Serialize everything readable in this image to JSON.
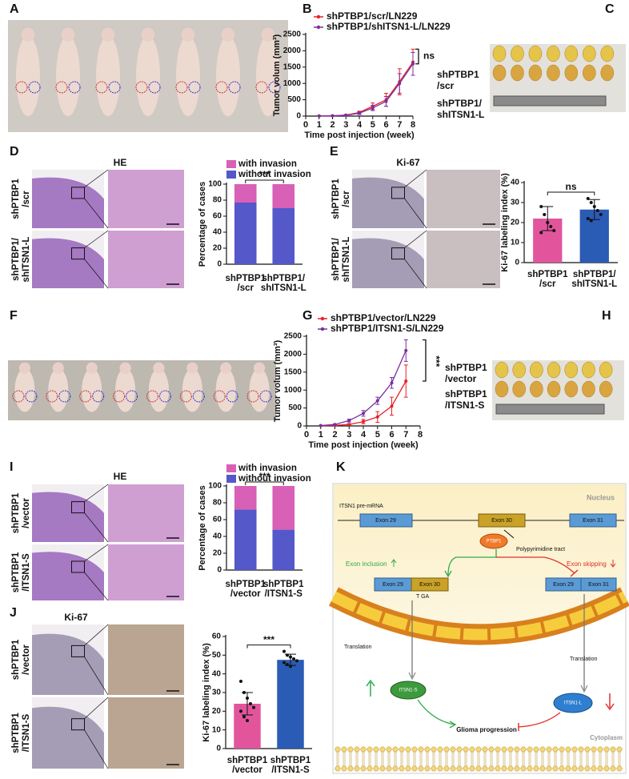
{
  "panels": [
    "A",
    "B",
    "C",
    "D",
    "E",
    "F",
    "G",
    "H",
    "I",
    "J",
    "K"
  ],
  "chart_data": [
    {
      "type": "line",
      "xlabel": "Time post injection (week)",
      "ylabel": "Tumor volum (mm³)",
      "x": [
        1,
        2,
        3,
        4,
        5,
        6,
        7,
        8
      ],
      "xlim": [
        0,
        8
      ],
      "xticks": [
        0,
        1,
        2,
        3,
        4,
        5,
        6,
        7,
        8
      ],
      "ylim": [
        0,
        2500
      ],
      "yticks": [
        0,
        500,
        1000,
        1500,
        2000,
        2500
      ],
      "series": [
        {
          "name": "shPTBP1/scr/LN229",
          "color": "#e8202a",
          "values": [
            5,
            10,
            30,
            110,
            300,
            500,
            1050,
            1650
          ],
          "errors": [
            3,
            5,
            15,
            40,
            100,
            200,
            400,
            400
          ]
        },
        {
          "name": "shPTBP1/shITSN1-L/LN229",
          "color": "#7a2f9f",
          "values": [
            3,
            8,
            25,
            90,
            250,
            450,
            1000,
            1600
          ],
          "errors": [
            2,
            5,
            10,
            40,
            80,
            150,
            300,
            350
          ]
        }
      ],
      "annotation": "ns"
    },
    {
      "type": "stacked_bar",
      "ylabel": "Percentage of cases",
      "categories": [
        [
          "shPTBP1",
          "/scr"
        ],
        [
          "shPTBP1/",
          "shITSN1-L"
        ]
      ],
      "ylim": [
        0,
        100
      ],
      "yticks": [
        0,
        20,
        40,
        60,
        80,
        100
      ],
      "series": [
        {
          "name": "with invasion",
          "color": "#d860b6",
          "values": [
            23,
            30
          ]
        },
        {
          "name": "without invasion",
          "color": "#5458c8",
          "values": [
            77,
            70
          ]
        }
      ],
      "annotation": "***"
    },
    {
      "type": "dot_bar",
      "ylabel": "Ki-67 labeling index (%)",
      "categories": [
        [
          "shPTBP1",
          "/scr"
        ],
        [
          "shPTBP1/",
          "shITSN1-L"
        ]
      ],
      "colors": [
        "#e2559d",
        "#2a5bb5"
      ],
      "values": [
        22,
        26.5
      ],
      "errors": [
        6,
        5
      ],
      "points": [
        [
          28,
          24,
          20,
          18,
          16,
          15
        ],
        [
          32,
          30,
          28,
          26,
          24,
          22,
          21
        ]
      ],
      "ylim": [
        0,
        40
      ],
      "yticks": [
        0,
        10,
        20,
        30,
        40
      ],
      "annotation": "ns"
    },
    {
      "type": "line",
      "xlabel": "Time post injection (week)",
      "ylabel": "Tumor volum (mm³)",
      "x": [
        1,
        2,
        3,
        4,
        5,
        6,
        7
      ],
      "xlim": [
        0,
        8
      ],
      "xticks": [
        0,
        1,
        2,
        3,
        4,
        5,
        6,
        7,
        8
      ],
      "ylim": [
        0,
        2500
      ],
      "yticks": [
        0,
        500,
        1000,
        1500,
        2000,
        2500
      ],
      "series": [
        {
          "name": "shPTBP1/vector/LN229",
          "color": "#e8202a",
          "values": [
            5,
            15,
            40,
            120,
            250,
            550,
            1250
          ],
          "errors": [
            2,
            8,
            20,
            60,
            150,
            250,
            450
          ]
        },
        {
          "name": "shPTBP1/ITSN1-S/LN229",
          "color": "#7a2f9f",
          "values": [
            10,
            40,
            150,
            350,
            700,
            1200,
            2100
          ],
          "errors": [
            5,
            15,
            40,
            80,
            100,
            150,
            300
          ]
        }
      ],
      "annotation": "***"
    },
    {
      "type": "stacked_bar",
      "ylabel": "Percentage of cases",
      "categories": [
        [
          "shPTBP1",
          "/vector"
        ],
        [
          "shPTBP1",
          "/ITSN1-S"
        ]
      ],
      "ylim": [
        0,
        100
      ],
      "yticks": [
        0,
        20,
        40,
        60,
        80,
        100
      ],
      "series": [
        {
          "name": "with invasion",
          "color": "#d860b6",
          "values": [
            28,
            52
          ]
        },
        {
          "name": "without invasion",
          "color": "#5458c8",
          "values": [
            72,
            48
          ]
        }
      ],
      "annotation": "***"
    },
    {
      "type": "dot_bar",
      "ylabel": "Ki-67 labeling index (%)",
      "categories": [
        [
          "shPTBP1",
          "/vector"
        ],
        [
          "shPTBP1",
          "/ITSN1-S"
        ]
      ],
      "colors": [
        "#e2559d",
        "#2a5bb5"
      ],
      "values": [
        24,
        47.5
      ],
      "errors": [
        6,
        3
      ],
      "points": [
        [
          36,
          30,
          27,
          24,
          22,
          20,
          17,
          15
        ],
        [
          52,
          50,
          49,
          48,
          47,
          46,
          45,
          44
        ]
      ],
      "ylim": [
        0,
        60
      ],
      "yticks": [
        0,
        10,
        20,
        30,
        40,
        50,
        60
      ],
      "annotation": "***"
    }
  ],
  "images": {
    "C": [
      [
        "shPTBP1",
        "/scr"
      ],
      [
        "shPTBP1/",
        "shITSN1-L"
      ]
    ],
    "D": {
      "title": "HE",
      "rows": [
        [
          "shPTBP1",
          "/scr"
        ],
        [
          "shPTBP1/",
          "shITSN1-L"
        ]
      ]
    },
    "E": {
      "title": "Ki-67",
      "rows": [
        [
          "shPTBP1",
          "/scr"
        ],
        [
          "shPTBP1/",
          "shITSN1-L"
        ]
      ]
    },
    "H": [
      [
        "shPTBP1",
        "/vector"
      ],
      [
        "shPTBP1",
        "/ITSN1-S"
      ]
    ],
    "I": {
      "title": "HE",
      "rows": [
        [
          "shPTBP1",
          "/vector"
        ],
        [
          "shPTBP1",
          "/ITSN1-S"
        ]
      ]
    },
    "J": {
      "title": "Ki-67",
      "rows": [
        [
          "shPTBP1",
          "/vector"
        ],
        [
          "shPTBP1",
          "/ITSN1-S"
        ]
      ]
    }
  },
  "diagram": {
    "nucleus": "Nucleus",
    "pre_mrna": "ITSN1 pre-mRNA",
    "exons": [
      "Exon 29",
      "Exon 30",
      "Exon 31"
    ],
    "ptbp1": "PTBP1",
    "tract": "Polypyrimidine tract",
    "inclusion": "Exon inclusion",
    "skipping": "Exon skipping",
    "included": [
      "Exon 29",
      "Exon 30"
    ],
    "skipped": [
      "Exon 29",
      "Exon 31"
    ],
    "stop_codon": "T GA",
    "translation": [
      "Translation",
      "Translation"
    ],
    "isoform_s": "ITSN1-S",
    "isoform_l": "ITSN1-L",
    "outcome": "Glioma progression",
    "cytoplasm": "Cytoplasm"
  }
}
